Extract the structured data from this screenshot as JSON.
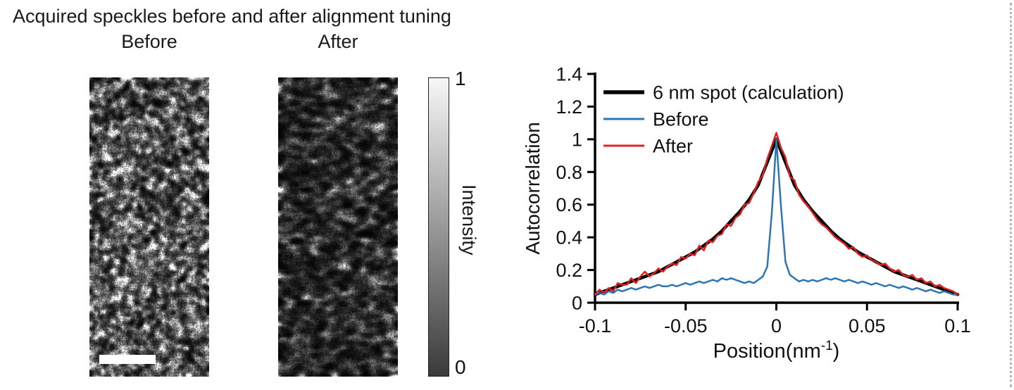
{
  "title": "Acquired speckles before and after alignment tuning",
  "speckles": {
    "before_label": "Before",
    "after_label": "After"
  },
  "colorbar": {
    "label": "Intensity",
    "max": "1",
    "min": "0"
  },
  "colors": {
    "axis": "#000000",
    "scalebar": "#ffffff",
    "colorbar_top": "#f7f7f7",
    "colorbar_bottom": "#3a3a3a"
  },
  "chart_data": {
    "type": "line",
    "title": "",
    "ylabel": "Autocorrelation",
    "xlabel": {
      "base": "Position(nm",
      "sup": "-1",
      "close": ")"
    },
    "xlim": [
      -0.1,
      0.1
    ],
    "ylim": [
      0,
      1.4
    ],
    "grid": false,
    "legend_position": "top-left",
    "xticks": {
      "values": [
        -0.1,
        -0.05,
        0,
        0.05,
        0.1
      ],
      "labels": [
        "-0.1",
        "-0.05",
        "0",
        "0.05",
        "0.1"
      ]
    },
    "yticks": {
      "values": [
        0,
        0.2,
        0.4,
        0.6,
        0.8,
        1.0,
        1.2,
        1.4
      ],
      "labels": [
        "0",
        "0.2",
        "0.4",
        "0.6",
        "0.8",
        "1",
        "1.2",
        "1.4"
      ]
    },
    "series": [
      {
        "name": "6 nm spot (calculation)",
        "color": "#000000",
        "width": 4.5,
        "x_start": -0.1,
        "x_step": 0.005,
        "y": [
          0.05,
          0.07,
          0.09,
          0.11,
          0.13,
          0.15,
          0.17,
          0.19,
          0.22,
          0.25,
          0.28,
          0.31,
          0.35,
          0.39,
          0.44,
          0.5,
          0.56,
          0.63,
          0.72,
          0.86,
          1.0,
          0.86,
          0.72,
          0.63,
          0.56,
          0.5,
          0.44,
          0.39,
          0.35,
          0.31,
          0.28,
          0.25,
          0.22,
          0.19,
          0.17,
          0.15,
          0.13,
          0.11,
          0.09,
          0.07,
          0.05
        ]
      },
      {
        "name": "Before",
        "color": "#2e75b6",
        "width": 2.5,
        "x_start": -0.1,
        "x_step": 0.0025,
        "y": [
          0.05,
          0.06,
          0.05,
          0.07,
          0.06,
          0.08,
          0.07,
          0.08,
          0.09,
          0.08,
          0.09,
          0.1,
          0.09,
          0.1,
          0.11,
          0.1,
          0.1,
          0.11,
          0.1,
          0.11,
          0.12,
          0.11,
          0.12,
          0.13,
          0.12,
          0.13,
          0.14,
          0.13,
          0.15,
          0.14,
          0.15,
          0.14,
          0.13,
          0.12,
          0.13,
          0.12,
          0.14,
          0.16,
          0.22,
          0.55,
          1.0,
          0.6,
          0.25,
          0.17,
          0.15,
          0.13,
          0.14,
          0.13,
          0.14,
          0.13,
          0.14,
          0.15,
          0.14,
          0.15,
          0.14,
          0.13,
          0.14,
          0.13,
          0.12,
          0.13,
          0.12,
          0.11,
          0.12,
          0.11,
          0.1,
          0.11,
          0.1,
          0.09,
          0.1,
          0.09,
          0.08,
          0.09,
          0.08,
          0.07,
          0.08,
          0.07,
          0.06,
          0.07,
          0.06,
          0.05,
          0.05
        ]
      },
      {
        "name": "After",
        "color": "#e02222",
        "width": 2.5,
        "x_start": -0.1,
        "x_step": 0.0025,
        "y": [
          0.05,
          0.08,
          0.06,
          0.09,
          0.07,
          0.12,
          0.11,
          0.11,
          0.15,
          0.12,
          0.16,
          0.19,
          0.16,
          0.18,
          0.21,
          0.19,
          0.22,
          0.24,
          0.23,
          0.28,
          0.27,
          0.3,
          0.29,
          0.35,
          0.32,
          0.38,
          0.37,
          0.41,
          0.42,
          0.48,
          0.47,
          0.52,
          0.54,
          0.6,
          0.61,
          0.67,
          0.74,
          0.78,
          0.88,
          0.96,
          1.04,
          0.95,
          0.89,
          0.77,
          0.75,
          0.66,
          0.62,
          0.59,
          0.55,
          0.51,
          0.48,
          0.46,
          0.43,
          0.4,
          0.38,
          0.36,
          0.33,
          0.34,
          0.3,
          0.28,
          0.29,
          0.26,
          0.25,
          0.23,
          0.24,
          0.21,
          0.19,
          0.2,
          0.17,
          0.16,
          0.17,
          0.14,
          0.15,
          0.12,
          0.13,
          0.1,
          0.11,
          0.09,
          0.08,
          0.07,
          0.05
        ]
      }
    ]
  }
}
